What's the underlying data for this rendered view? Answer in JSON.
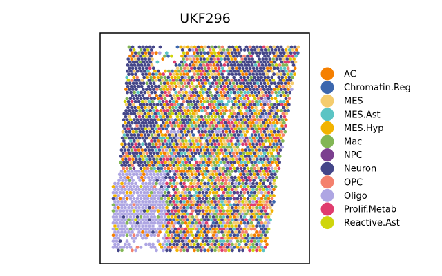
{
  "chart_data": {
    "type": "scatter",
    "title": "UKF296",
    "xlabel": "",
    "ylabel": "",
    "axes": "off",
    "grid": false,
    "legend_position": "right",
    "categories": [
      {
        "name": "AC",
        "color": "#F57F00"
      },
      {
        "name": "Chromatin.Reg",
        "color": "#3C67AE"
      },
      {
        "name": "MES",
        "color": "#F4CC6E"
      },
      {
        "name": "MES.Ast",
        "color": "#5BC4C4"
      },
      {
        "name": "MES.Hyp",
        "color": "#F2B300"
      },
      {
        "name": "Mac",
        "color": "#82B655"
      },
      {
        "name": "NPC",
        "color": "#7B3F8F"
      },
      {
        "name": "Neuron",
        "color": "#444689"
      },
      {
        "name": "OPC",
        "color": "#F4816D"
      },
      {
        "name": "Oligo",
        "color": "#AEA6E3"
      },
      {
        "name": "Prolif.Metab",
        "color": "#E03C6E"
      },
      {
        "name": "Reactive.Ast",
        "color": "#CFD50C"
      }
    ]
  }
}
